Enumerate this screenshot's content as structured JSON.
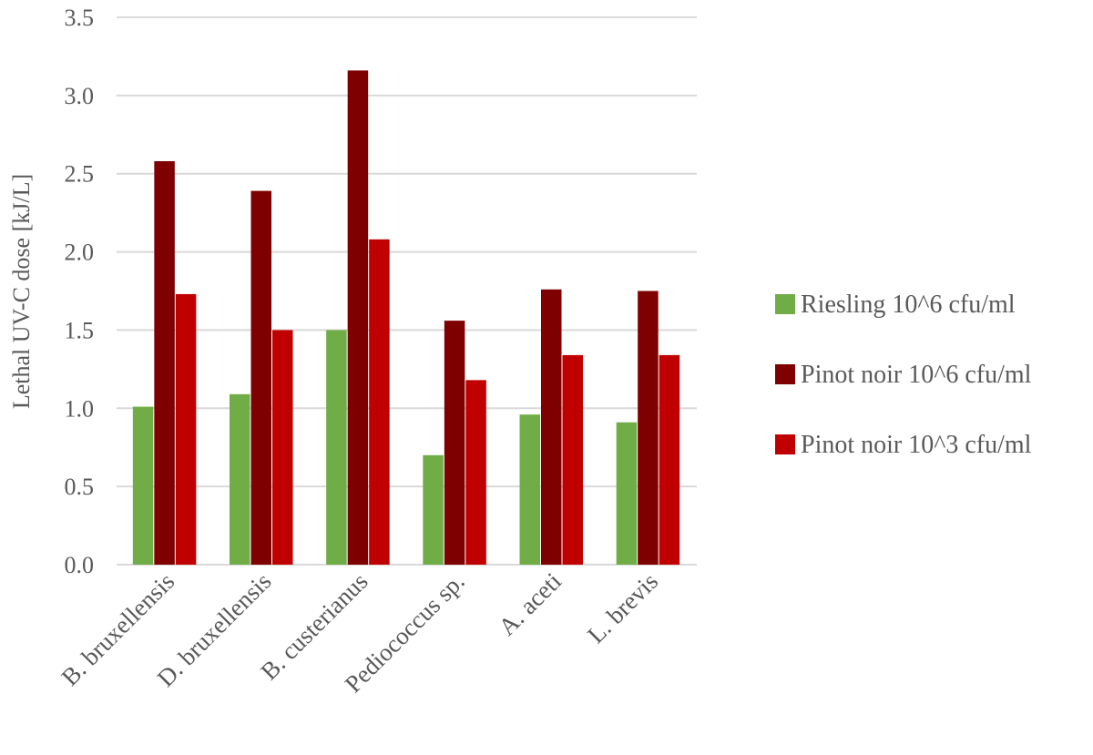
{
  "chart_data": {
    "type": "bar",
    "title": "",
    "xlabel": "",
    "ylabel": "Lethal UV-C dose [kJ/L]",
    "ylim": [
      0,
      3.5
    ],
    "yticks": [
      "0.0",
      "0.5",
      "1.0",
      "1.5",
      "2.0",
      "2.5",
      "3.0",
      "3.5"
    ],
    "grid": true,
    "legend_position": "right",
    "categories": [
      "B. bruxellensis",
      "D. bruxellensis",
      "B. custerianus",
      "Pediococcus sp.",
      "A. aceti",
      "L. brevis"
    ],
    "series": [
      {
        "name": "Riesling 10^6 cfu/ml",
        "color": "#70ad47",
        "values": [
          1.01,
          1.09,
          1.5,
          0.7,
          0.96,
          0.91
        ]
      },
      {
        "name": "Pinot noir 10^6 cfu/ml",
        "color": "#7f0000",
        "values": [
          2.58,
          2.39,
          3.16,
          1.56,
          1.76,
          1.75
        ]
      },
      {
        "name": "Pinot noir 10^3 cfu/ml",
        "color": "#c00000",
        "values": [
          1.73,
          1.5,
          2.08,
          1.18,
          1.34,
          1.34
        ]
      }
    ]
  }
}
